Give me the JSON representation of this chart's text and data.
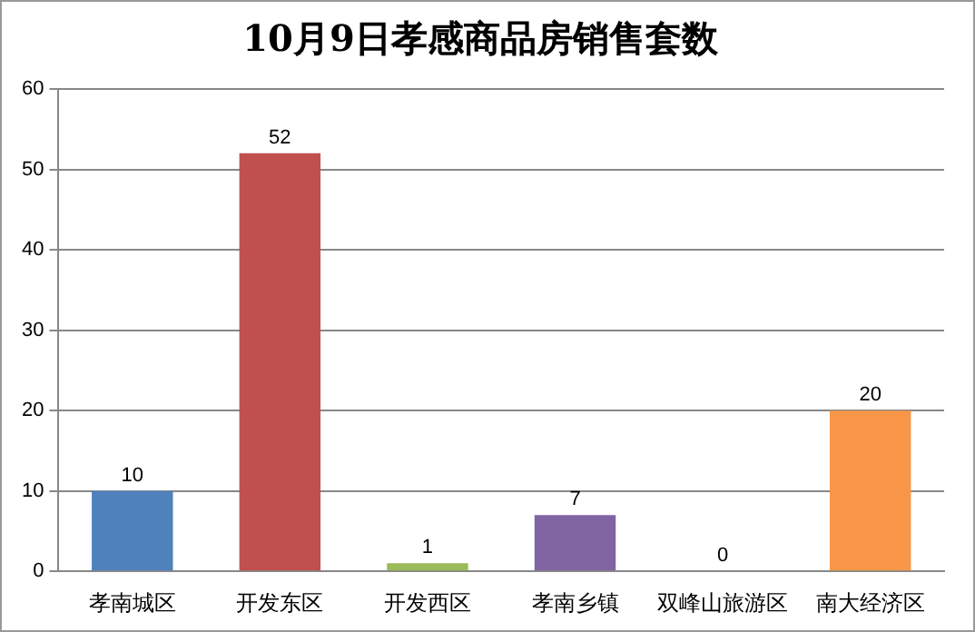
{
  "chart_data": {
    "type": "bar",
    "title": "10月9日孝感商品房销售套数",
    "categories": [
      "孝南城区",
      "开发东区",
      "开发西区",
      "孝南乡镇",
      "双峰山旅游区",
      "南大经济区"
    ],
    "values": [
      10,
      52,
      1,
      7,
      0,
      20
    ],
    "colors": [
      "#4f81bd",
      "#c0504d",
      "#9bbb59",
      "#8064a2",
      "#4bacc6",
      "#f79646"
    ],
    "ylim": [
      0,
      60
    ],
    "yticks": [
      0,
      10,
      20,
      30,
      40,
      50,
      60
    ],
    "grid": "y",
    "data_labels": true,
    "legend": false
  }
}
